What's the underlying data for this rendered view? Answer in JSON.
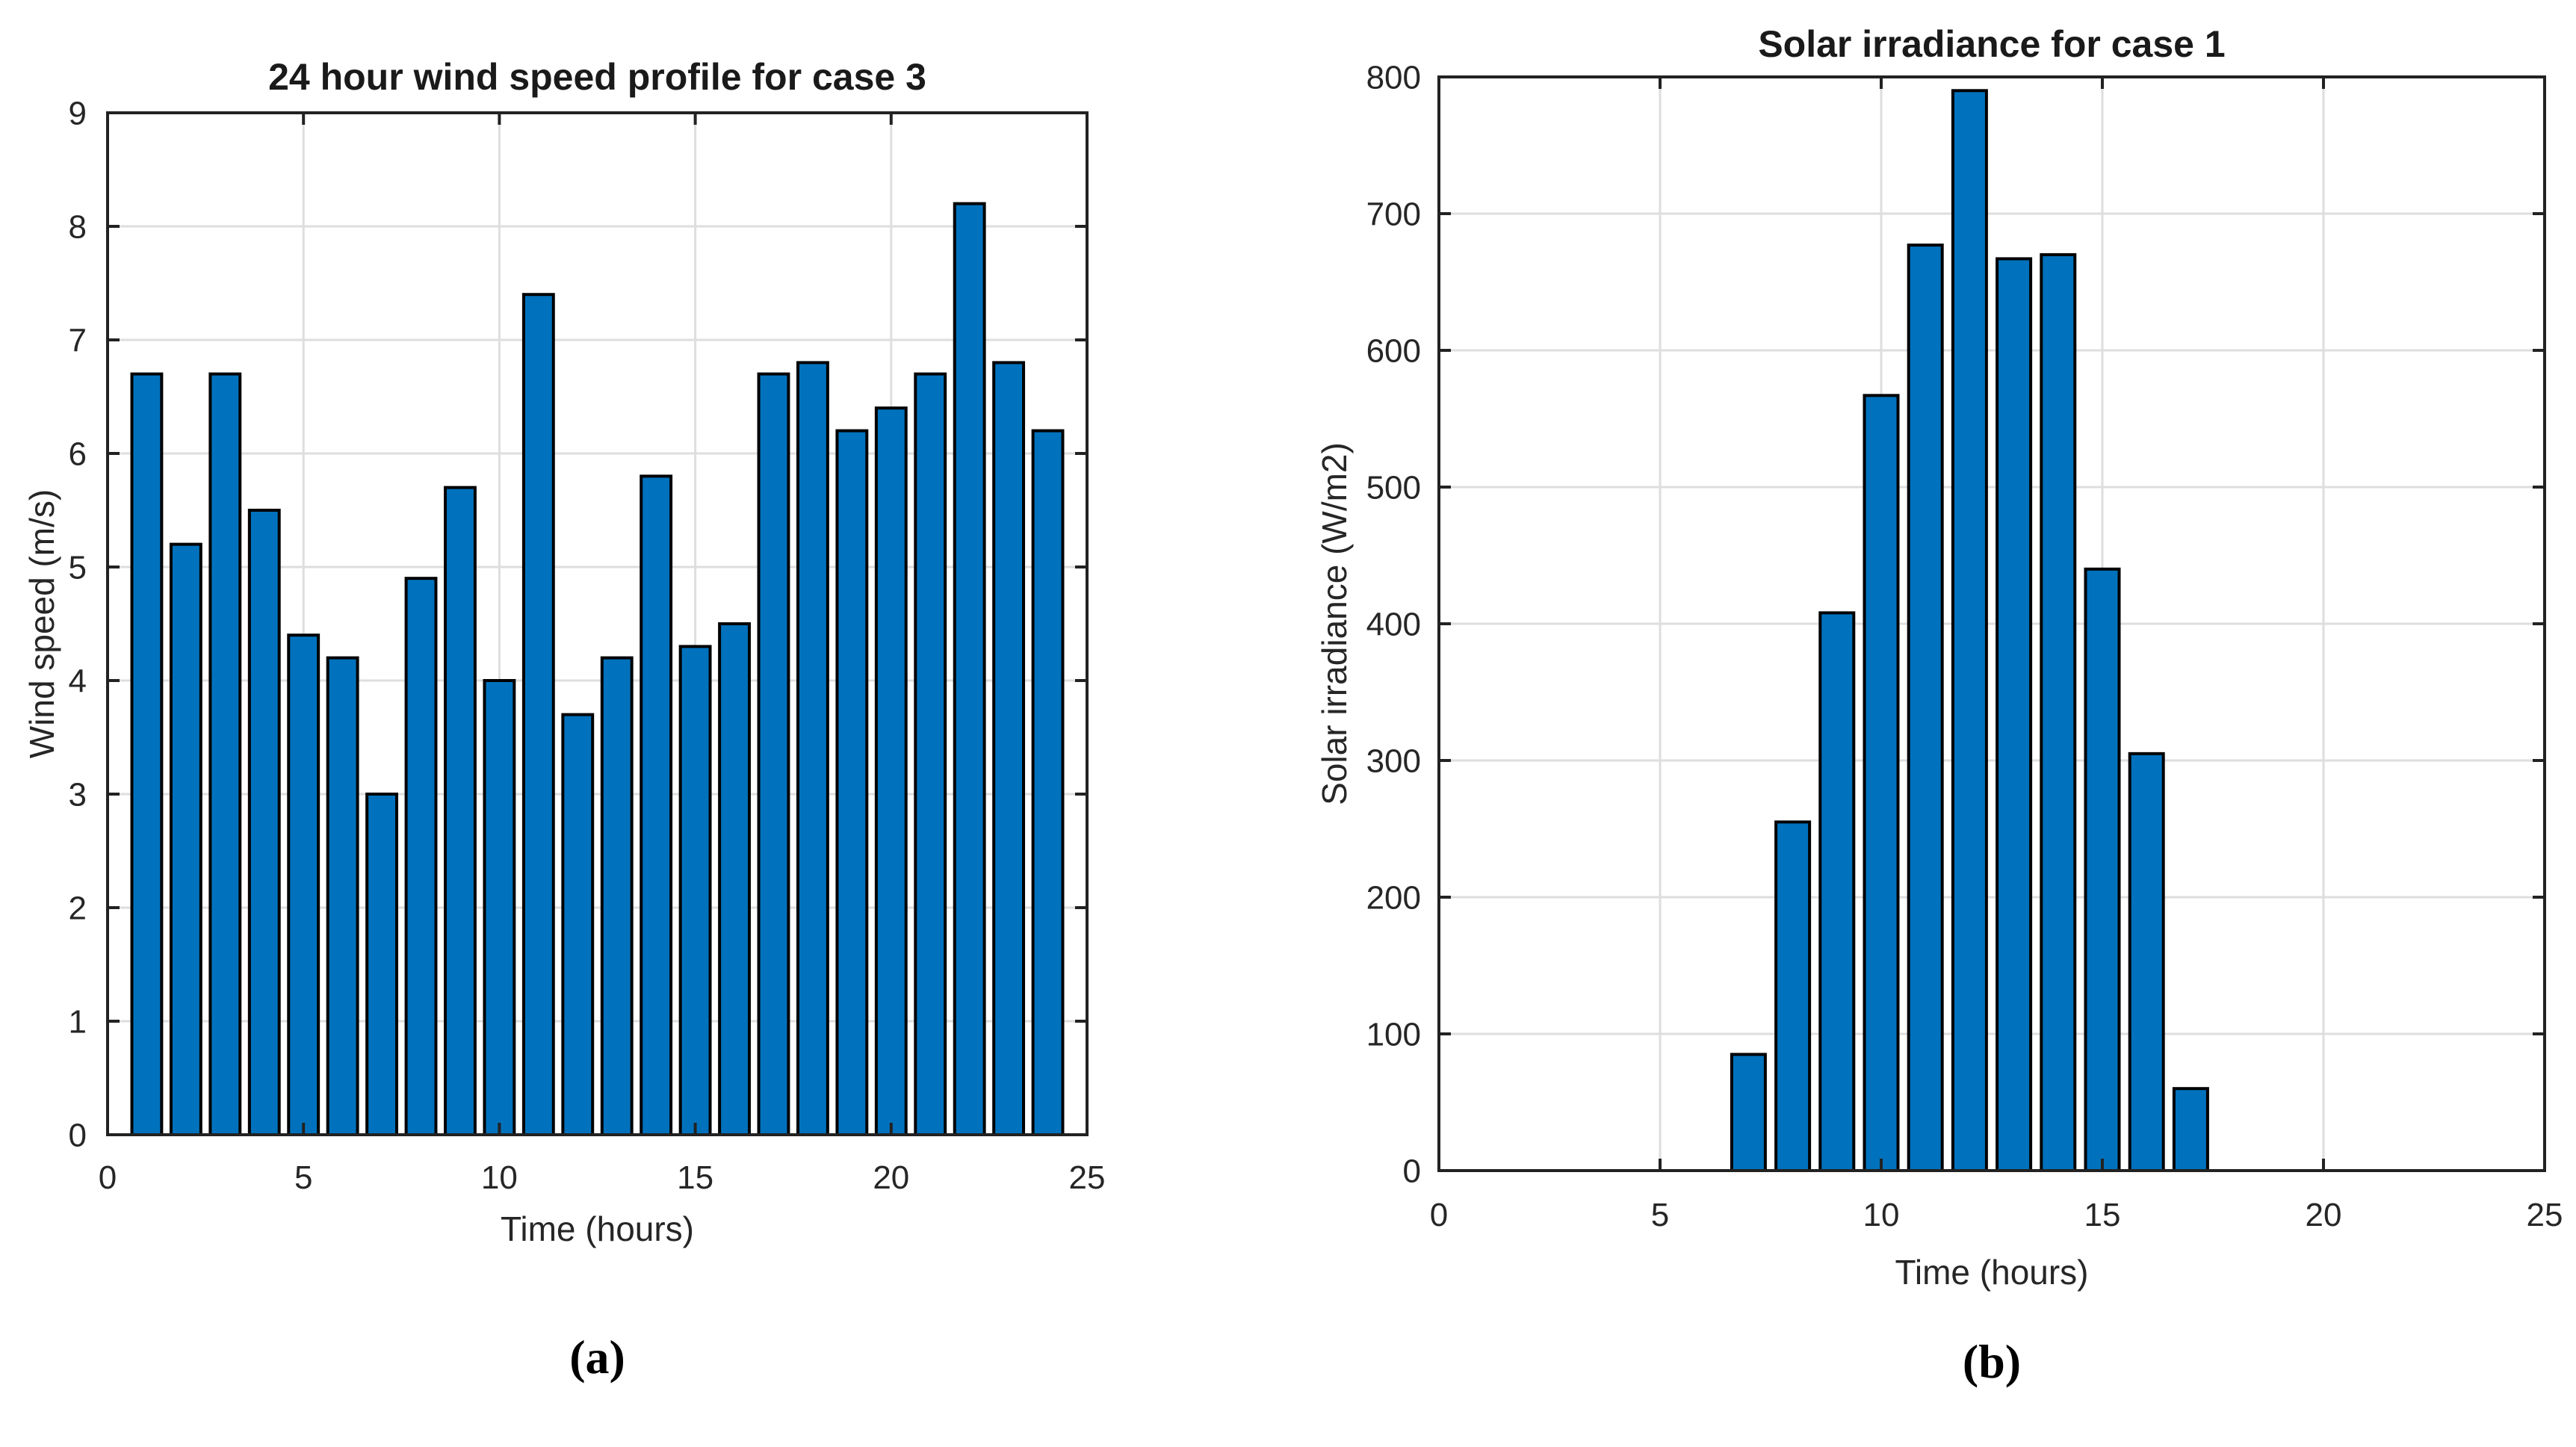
{
  "style": {
    "bar_fill": "#0072BD",
    "bar_edge": "#000000",
    "grid_color": "#DEDEDE",
    "axis_color": "#222222",
    "tick_label_color": "#262626",
    "title_color": "#1a1a1a"
  },
  "chart_data": [
    {
      "type": "bar",
      "title": "24 hour wind speed profile for case 3",
      "xlabel": "Time (hours)",
      "ylabel": "Wind speed (m/s)",
      "caption": "(a)",
      "x": [
        1,
        2,
        3,
        4,
        5,
        6,
        7,
        8,
        9,
        10,
        11,
        12,
        13,
        14,
        15,
        16,
        17,
        18,
        19,
        20,
        21,
        22,
        23,
        24
      ],
      "values": [
        6.7,
        5.2,
        6.7,
        5.5,
        4.4,
        4.2,
        3.0,
        4.9,
        5.7,
        4.0,
        7.4,
        3.7,
        4.2,
        5.8,
        4.3,
        4.5,
        6.7,
        6.8,
        6.2,
        6.4,
        6.7,
        8.2,
        6.8,
        6.2
      ],
      "xlim": [
        0,
        25
      ],
      "ylim": [
        0,
        9
      ],
      "xticks": [
        0,
        5,
        10,
        15,
        20,
        25
      ],
      "yticks": [
        0,
        1,
        2,
        3,
        4,
        5,
        6,
        7,
        8,
        9
      ],
      "grid": true,
      "legend_position": "none",
      "bar_width_fraction": 0.76
    },
    {
      "type": "bar",
      "title": "Solar irradiance for case 1",
      "xlabel": "Time (hours)",
      "ylabel": "Solar irradiance (W/m2)",
      "caption": "(b)",
      "x": [
        7,
        8,
        9,
        10,
        11,
        12,
        13,
        14,
        15,
        16,
        17
      ],
      "values": [
        85,
        255,
        408,
        567,
        677,
        790,
        667,
        670,
        440,
        305,
        60
      ],
      "xlim": [
        0,
        25
      ],
      "ylim": [
        0,
        800
      ],
      "xticks": [
        0,
        5,
        10,
        15,
        20,
        25
      ],
      "yticks": [
        0,
        100,
        200,
        300,
        400,
        500,
        600,
        700,
        800
      ],
      "grid": true,
      "legend_position": "none",
      "bar_width_fraction": 0.76
    }
  ]
}
